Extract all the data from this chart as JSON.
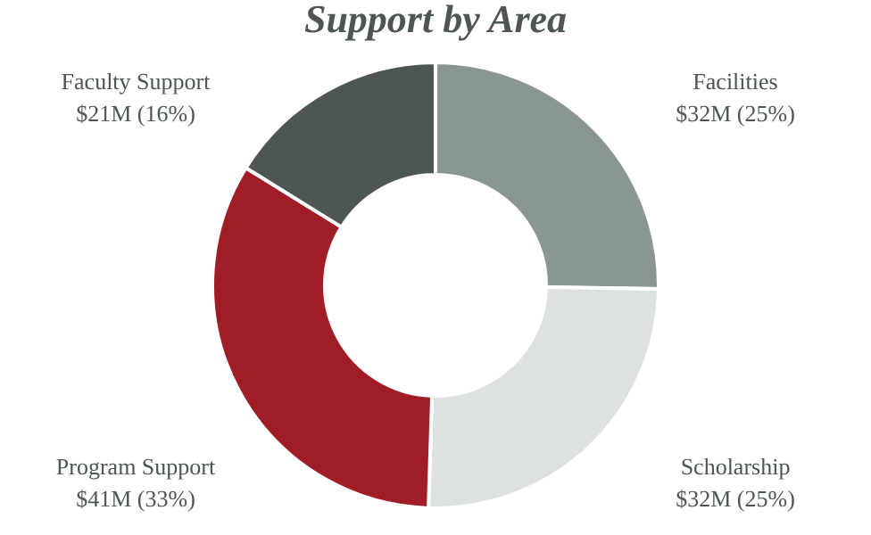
{
  "chart_data": {
    "type": "donut",
    "title": "Support by Area",
    "categories": [
      "Facilities",
      "Scholarship",
      "Program Support",
      "Faculty Support"
    ],
    "values": [
      25,
      25,
      33,
      16
    ],
    "value_labels": [
      "$32M (25%)",
      "$32M (25%)",
      "$41M (33%)",
      "$21M (16%)"
    ],
    "colors": [
      "#8a9691",
      "#dde2e1",
      "#a01c26",
      "#4d5555"
    ],
    "legend": false
  }
}
